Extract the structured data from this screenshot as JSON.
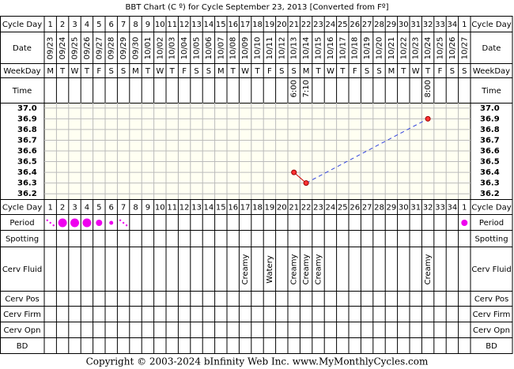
{
  "chart_data": {
    "type": "line",
    "title": "BBT Chart (C º) for Cycle September 23, 2013  [Converted from Fº]",
    "labels": [
      "Cycle Day",
      "Date",
      "WeekDay",
      "Time",
      "Period",
      "Spotting",
      "Cerv Fluid",
      "Cerv Pos",
      "Cerv Firm",
      "Cerv Opn",
      "BD"
    ],
    "categories": [
      1,
      2,
      3,
      4,
      5,
      6,
      7,
      8,
      9,
      10,
      11,
      12,
      13,
      14,
      15,
      16,
      17,
      18,
      19,
      20,
      21,
      22,
      23,
      24,
      25,
      26,
      27,
      28,
      29,
      30,
      31,
      32,
      33,
      34,
      1
    ],
    "dates": [
      "09/23",
      "09/24",
      "09/25",
      "09/26",
      "09/27",
      "09/28",
      "09/29",
      "09/30",
      "10/01",
      "10/02",
      "10/03",
      "10/04",
      "10/05",
      "10/06",
      "10/07",
      "10/08",
      "10/09",
      "10/10",
      "10/11",
      "10/12",
      "10/13",
      "10/14",
      "10/15",
      "10/16",
      "10/17",
      "10/18",
      "10/19",
      "10/20",
      "10/21",
      "10/22",
      "10/23",
      "10/24",
      "10/25",
      "10/26",
      "10/27"
    ],
    "weekdays": [
      "M",
      "T",
      "W",
      "T",
      "F",
      "S",
      "S",
      "M",
      "T",
      "W",
      "T",
      "F",
      "S",
      "S",
      "M",
      "T",
      "W",
      "T",
      "F",
      "S",
      "S",
      "M",
      "T",
      "W",
      "T",
      "F",
      "S",
      "S",
      "M",
      "T",
      "W",
      "T",
      "F",
      "S",
      "S"
    ],
    "times": [
      null,
      null,
      null,
      null,
      null,
      null,
      null,
      null,
      null,
      null,
      null,
      null,
      null,
      null,
      null,
      null,
      null,
      null,
      null,
      null,
      "6:00",
      "7:10",
      null,
      null,
      null,
      null,
      null,
      null,
      null,
      null,
      null,
      "8:00",
      null,
      null,
      null
    ],
    "series": [
      {
        "name": "BBT",
        "color": "#cc0000",
        "values": [
          null,
          null,
          null,
          null,
          null,
          null,
          null,
          null,
          null,
          null,
          null,
          null,
          null,
          null,
          null,
          null,
          null,
          null,
          null,
          null,
          36.4,
          36.3,
          null,
          null,
          null,
          null,
          null,
          null,
          null,
          null,
          null,
          36.9,
          null,
          null,
          null
        ]
      }
    ],
    "period": [
      1,
      4,
      4,
      4,
      3,
      2,
      1,
      null,
      null,
      null,
      null,
      null,
      null,
      null,
      null,
      null,
      null,
      null,
      null,
      null,
      null,
      null,
      null,
      null,
      null,
      null,
      null,
      null,
      null,
      null,
      null,
      null,
      null,
      null,
      3
    ],
    "period_color": "#ee00ee",
    "cerv_fluid": [
      null,
      null,
      null,
      null,
      null,
      null,
      null,
      null,
      null,
      null,
      null,
      null,
      null,
      null,
      null,
      null,
      "Creamy",
      null,
      "Watery",
      null,
      "Creamy",
      "Creamy",
      "Creamy",
      null,
      null,
      null,
      null,
      null,
      null,
      null,
      null,
      "Creamy",
      null,
      null,
      null
    ],
    "ylim": [
      36.15,
      37.05
    ],
    "yticks": [
      {
        "value": 37,
        "label": "37.0"
      },
      36.9,
      36.8,
      36.7,
      36.6,
      36.5,
      36.4,
      36.3,
      36.2
    ],
    "grid": true,
    "footer": "Copyright © 2003-2024 bInfinity Web Inc.     www.MyMonthlyCycles.com"
  }
}
